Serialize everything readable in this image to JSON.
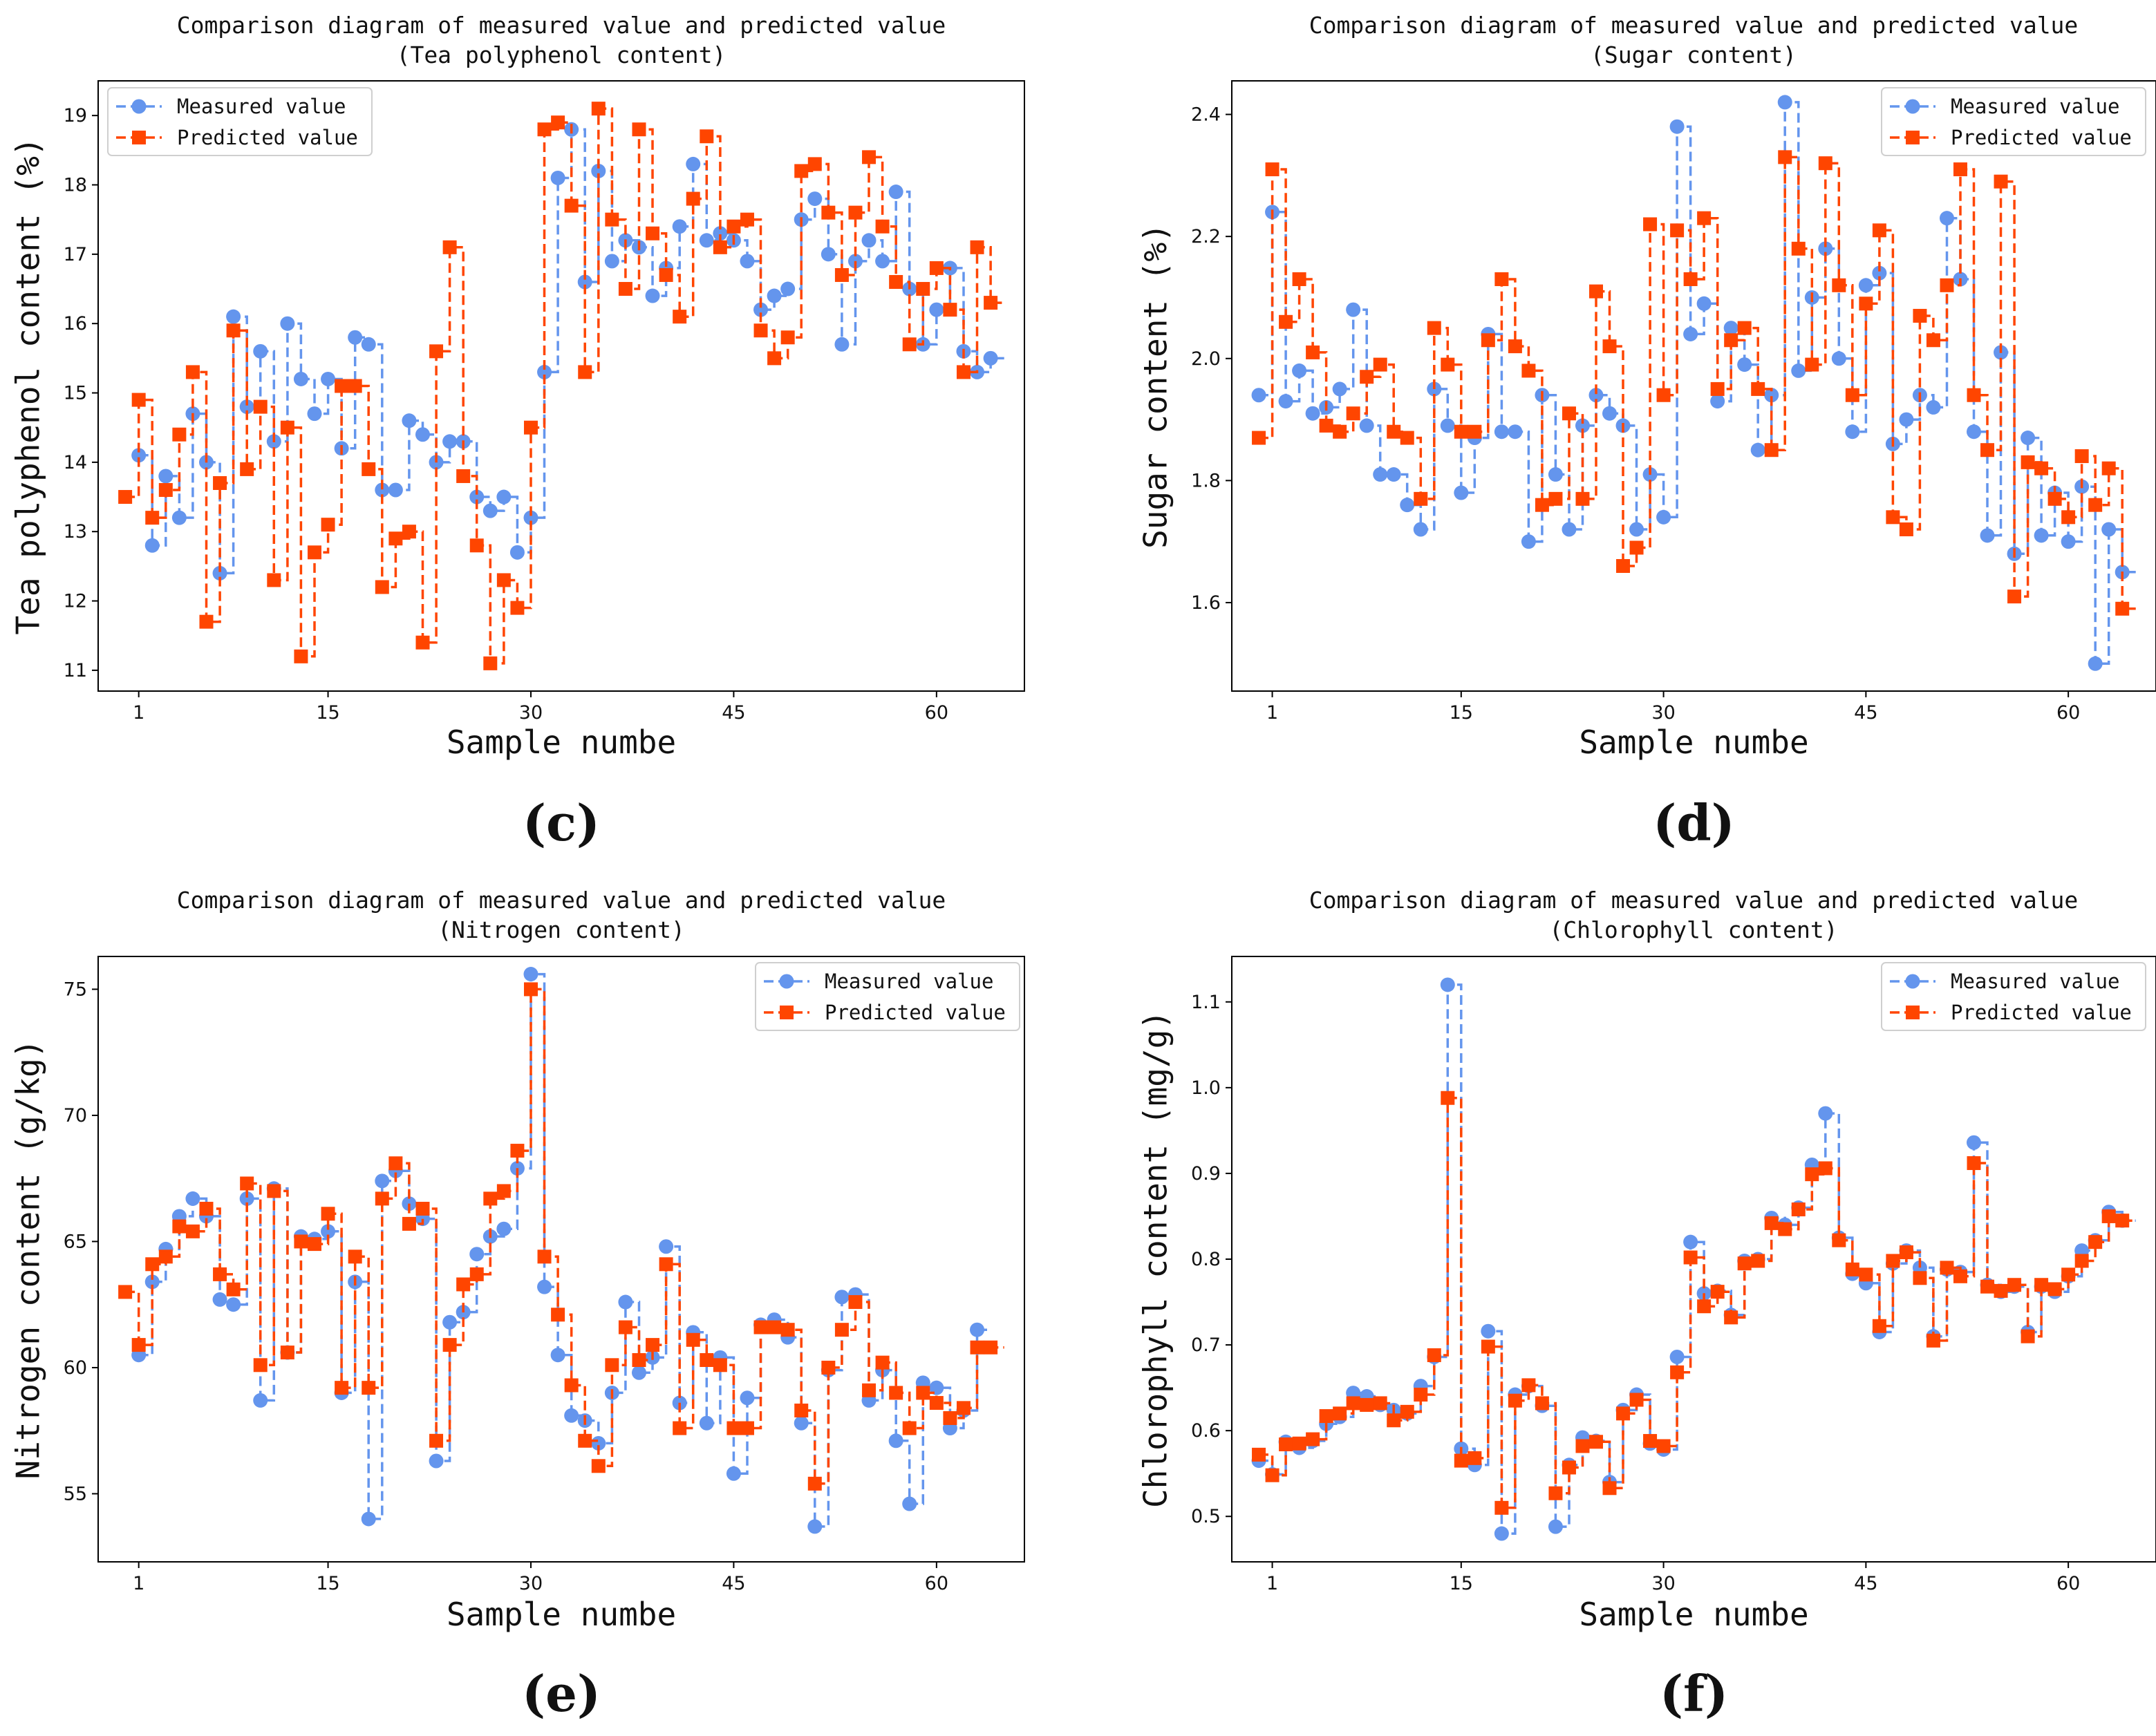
{
  "colors": {
    "measured": "#6495ED",
    "predicted": "#FF4500"
  },
  "chart_data": [
    {
      "type": "line",
      "panel_label": "(c)",
      "title": "Comparison diagram of measured value and predicted value",
      "subtitle": "(Tea polyphenol content)",
      "xlabel": "Sample numbe",
      "ylabel": "Tea polyphenol content (%)",
      "xticks": [
        1,
        15,
        30,
        45,
        60
      ],
      "yticks": [
        11,
        12,
        13,
        14,
        15,
        16,
        17,
        18,
        19
      ],
      "xlim": [
        -2,
        66.5
      ],
      "ylim": [
        10.7,
        19.5
      ],
      "legend": "top-left",
      "series": [
        {
          "name": "Measured value",
          "x_start": 1,
          "values": [
            14.1,
            12.8,
            13.8,
            13.2,
            14.7,
            14.0,
            12.4,
            16.1,
            14.8,
            15.6,
            14.3,
            16.0,
            15.2,
            14.7,
            15.2,
            14.2,
            15.8,
            15.7,
            13.6,
            13.6,
            14.6,
            14.4,
            14.0,
            14.3,
            14.3,
            13.5,
            13.3,
            13.5,
            12.7,
            13.2,
            15.3,
            18.1,
            18.8,
            16.6,
            18.2,
            16.9,
            17.2,
            17.1,
            16.4,
            16.8,
            17.4,
            18.3,
            17.2,
            17.3,
            17.2,
            16.9,
            16.2,
            16.4,
            16.5,
            17.5,
            17.8,
            17.0,
            15.7,
            16.9,
            17.2,
            16.9,
            17.9,
            16.5,
            15.7,
            16.2,
            16.8,
            15.6,
            15.3,
            15.5
          ]
        },
        {
          "name": "Predicted value",
          "x_start": 0,
          "values": [
            13.5,
            14.9,
            13.2,
            13.6,
            14.4,
            15.3,
            11.7,
            13.7,
            15.9,
            13.9,
            14.8,
            12.3,
            14.5,
            11.2,
            12.7,
            13.1,
            15.1,
            15.1,
            13.9,
            12.2,
            12.9,
            13.0,
            11.4,
            15.6,
            17.1,
            13.8,
            12.8,
            11.1,
            12.3,
            11.9,
            14.5,
            18.8,
            18.9,
            17.7,
            15.3,
            19.1,
            17.5,
            16.5,
            18.8,
            17.3,
            16.7,
            16.1,
            17.8,
            18.7,
            17.1,
            17.4,
            17.5,
            15.9,
            15.5,
            15.8,
            18.2,
            18.3,
            17.6,
            16.7,
            17.6,
            18.4,
            17.4,
            16.6,
            15.7,
            16.5,
            16.8,
            16.2,
            15.3,
            17.1,
            16.3
          ]
        }
      ]
    },
    {
      "type": "line",
      "panel_label": "(d)",
      "title": "Comparison diagram of measured value and predicted value",
      "subtitle": "(Sugar content)",
      "xlabel": "Sample numbe",
      "ylabel": "Sugar content (%)",
      "xticks": [
        1,
        15,
        30,
        45,
        60
      ],
      "yticks": [
        1.6,
        1.8,
        2.0,
        2.2,
        2.4
      ],
      "xlim": [
        -2,
        66.5
      ],
      "ylim": [
        1.455,
        2.455
      ],
      "legend": "top-right",
      "series": [
        {
          "name": "Measured value",
          "x_start": 0,
          "values": [
            1.94,
            2.24,
            1.93,
            1.98,
            1.91,
            1.92,
            1.95,
            2.08,
            1.89,
            1.81,
            1.81,
            1.76,
            1.72,
            1.95,
            1.89,
            1.78,
            1.87,
            2.04,
            1.88,
            1.88,
            1.7,
            1.94,
            1.81,
            1.72,
            1.89,
            1.94,
            1.91,
            1.89,
            1.72,
            1.81,
            1.74,
            2.38,
            2.04,
            2.09,
            1.93,
            2.05,
            1.99,
            1.85,
            1.94,
            2.42,
            1.98,
            2.1,
            2.18,
            2.0,
            1.88,
            2.12,
            2.14,
            1.86,
            1.9,
            1.94,
            1.92,
            2.23,
            2.13,
            1.88,
            1.71,
            2.01,
            1.68,
            1.87,
            1.71,
            1.78,
            1.7,
            1.79,
            1.5,
            1.72,
            1.65
          ]
        },
        {
          "name": "Predicted value",
          "x_start": 0,
          "values": [
            1.87,
            2.31,
            2.06,
            2.13,
            2.01,
            1.89,
            1.88,
            1.91,
            1.97,
            1.99,
            1.88,
            1.87,
            1.77,
            2.05,
            1.99,
            1.88,
            1.88,
            2.03,
            2.13,
            2.02,
            1.98,
            1.76,
            1.77,
            1.91,
            1.77,
            2.11,
            2.02,
            1.66,
            1.69,
            2.22,
            1.94,
            2.21,
            2.13,
            2.23,
            1.95,
            2.03,
            2.05,
            1.95,
            1.85,
            2.33,
            2.18,
            1.99,
            2.32,
            2.12,
            1.94,
            2.09,
            2.21,
            1.74,
            1.72,
            2.07,
            2.03,
            2.12,
            2.31,
            1.94,
            1.85,
            2.29,
            1.61,
            1.83,
            1.82,
            1.77,
            1.74,
            1.84,
            1.76,
            1.82,
            1.59
          ]
        }
      ]
    },
    {
      "type": "line",
      "panel_label": "(e)",
      "title": "Comparison diagram of measured value and predicted value",
      "subtitle": "(Nitrogen content)",
      "xlabel": "Sample numbe",
      "ylabel": "Nitrogen content (g/kg)",
      "xticks": [
        1,
        15,
        30,
        45,
        60
      ],
      "yticks": [
        55,
        60,
        65,
        70,
        75
      ],
      "xlim": [
        -2,
        66.5
      ],
      "ylim": [
        52.3,
        76.3
      ],
      "legend": "top-right",
      "series": [
        {
          "name": "Measured value",
          "x_start": 1,
          "values": [
            60.5,
            63.4,
            64.7,
            66.0,
            66.7,
            66.0,
            62.7,
            62.5,
            66.7,
            58.7,
            67.1,
            60.6,
            65.2,
            65.1,
            65.4,
            59.0,
            63.4,
            54.0,
            67.4,
            67.8,
            66.5,
            65.9,
            56.3,
            61.8,
            62.2,
            64.5,
            65.2,
            65.5,
            67.9,
            75.6,
            63.2,
            60.5,
            58.1,
            57.9,
            57.0,
            59.0,
            62.6,
            59.8,
            60.4,
            64.8,
            58.6,
            61.4,
            57.8,
            60.4,
            55.8,
            58.8,
            61.7,
            61.9,
            61.2,
            57.8,
            53.7,
            59.9,
            62.8,
            62.9,
            58.7,
            59.9,
            57.1,
            54.6,
            59.4,
            59.2,
            57.6,
            58.3,
            61.5
          ]
        },
        {
          "name": "Predicted value",
          "x_start": 0,
          "values": [
            63.0,
            60.9,
            64.1,
            64.4,
            65.6,
            65.4,
            66.3,
            63.7,
            63.1,
            67.3,
            60.1,
            67.0,
            60.6,
            65.0,
            64.9,
            66.1,
            59.2,
            64.4,
            59.2,
            66.7,
            68.1,
            65.7,
            66.3,
            57.1,
            60.9,
            63.3,
            63.7,
            66.7,
            67.0,
            68.6,
            75.0,
            64.4,
            62.1,
            59.3,
            57.1,
            56.1,
            60.1,
            61.6,
            60.3,
            60.9,
            64.1,
            57.6,
            61.1,
            60.3,
            60.1,
            57.6,
            57.6,
            61.6,
            61.6,
            61.5,
            58.3,
            55.4,
            60.0,
            61.5,
            62.6,
            59.1,
            60.2,
            59.0,
            57.6,
            59.0,
            58.6,
            58.0,
            58.4,
            60.8,
            60.8
          ]
        }
      ]
    },
    {
      "type": "line",
      "panel_label": "(f)",
      "title": "Comparison diagram of measured value and predicted value",
      "subtitle": "(Chlorophyll content)",
      "xlabel": "Sample numbe",
      "ylabel": "Chlorophyll content (mg/g)",
      "xticks": [
        1,
        15,
        30,
        45,
        60
      ],
      "yticks": [
        0.5,
        0.6,
        0.7,
        0.8,
        0.9,
        1.0,
        1.1
      ],
      "xlim": [
        -2,
        66.5
      ],
      "ylim": [
        0.447,
        1.153
      ],
      "legend": "top-right",
      "series": [
        {
          "name": "Measured value",
          "x_start": 0,
          "values": [
            0.565,
            0.549,
            0.587,
            0.58,
            0.588,
            0.608,
            0.616,
            0.644,
            0.64,
            0.63,
            0.624,
            0.62,
            0.652,
            0.686,
            1.12,
            0.579,
            0.56,
            0.716,
            0.48,
            0.642,
            0.652,
            0.629,
            0.488,
            0.56,
            0.592,
            0.588,
            0.54,
            0.624,
            0.642,
            0.585,
            0.578,
            0.686,
            0.82,
            0.76,
            0.763,
            0.735,
            0.798,
            0.8,
            0.848,
            0.84,
            0.86,
            0.91,
            0.97,
            0.825,
            0.783,
            0.772,
            0.715,
            0.795,
            0.81,
            0.79,
            0.71,
            0.788,
            0.785,
            0.936,
            0.77,
            0.762,
            0.768,
            0.715,
            0.768,
            0.762,
            0.78,
            0.81,
            0.822,
            0.855,
            0.845
          ]
        },
        {
          "name": "Predicted value",
          "x_start": 0,
          "values": [
            0.572,
            0.548,
            0.584,
            0.585,
            0.59,
            0.617,
            0.62,
            0.632,
            0.63,
            0.632,
            0.612,
            0.622,
            0.642,
            0.688,
            0.988,
            0.565,
            0.568,
            0.698,
            0.51,
            0.635,
            0.653,
            0.632,
            0.527,
            0.557,
            0.582,
            0.587,
            0.533,
            0.62,
            0.636,
            0.588,
            0.582,
            0.668,
            0.802,
            0.745,
            0.762,
            0.732,
            0.795,
            0.798,
            0.842,
            0.835,
            0.858,
            0.899,
            0.906,
            0.822,
            0.788,
            0.782,
            0.722,
            0.798,
            0.808,
            0.778,
            0.705,
            0.79,
            0.78,
            0.912,
            0.768,
            0.763,
            0.77,
            0.71,
            0.77,
            0.765,
            0.782,
            0.798,
            0.82,
            0.85,
            0.845
          ]
        }
      ]
    }
  ]
}
